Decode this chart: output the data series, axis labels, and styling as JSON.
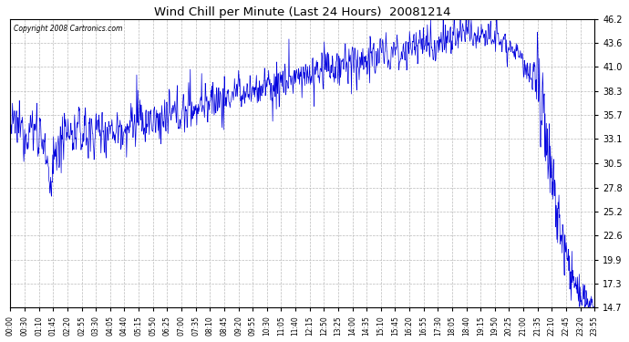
{
  "title": "Wind Chill per Minute (Last 24 Hours)  20081214",
  "copyright": "Copyright 2008 Cartronics.com",
  "line_color": "#0000dd",
  "bg_color": "#ffffff",
  "grid_color": "#bbbbbb",
  "yticks": [
    14.7,
    17.3,
    19.9,
    22.6,
    25.2,
    27.8,
    30.5,
    33.1,
    35.7,
    38.3,
    41.0,
    43.6,
    46.2
  ],
  "ymin": 14.7,
  "ymax": 46.2,
  "xtick_labels": [
    "00:00",
    "00:30",
    "01:10",
    "01:45",
    "02:20",
    "02:55",
    "03:30",
    "04:05",
    "04:40",
    "05:15",
    "05:50",
    "06:25",
    "07:00",
    "07:35",
    "08:10",
    "08:45",
    "09:20",
    "09:55",
    "10:30",
    "11:05",
    "11:40",
    "12:15",
    "12:50",
    "13:25",
    "14:00",
    "14:35",
    "15:10",
    "15:45",
    "16:20",
    "16:55",
    "17:30",
    "18:05",
    "18:40",
    "19:15",
    "19:50",
    "20:25",
    "21:00",
    "21:35",
    "22:10",
    "22:45",
    "23:20",
    "23:55"
  ]
}
